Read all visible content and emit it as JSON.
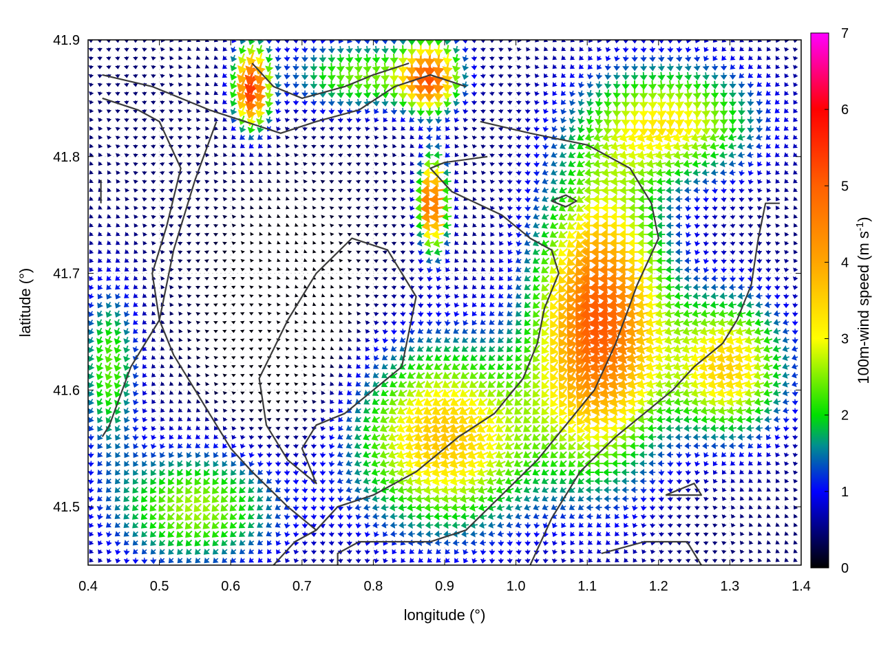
{
  "chart_data": {
    "type": "vector-field",
    "xlabel": "longitude (°)",
    "ylabel": "latitude (°)",
    "xlim": [
      0.4,
      1.4
    ],
    "ylim": [
      41.45,
      41.9
    ],
    "xticks": [
      {
        "value": 0.4,
        "label": "0.4"
      },
      {
        "value": 0.5,
        "label": "0.5"
      },
      {
        "value": 0.6,
        "label": "0.6"
      },
      {
        "value": 0.7,
        "label": "0.7"
      },
      {
        "value": 0.8,
        "label": "0.8"
      },
      {
        "value": 0.9,
        "label": "0.9"
      },
      {
        "value": 1.0,
        "label": "1.0"
      },
      {
        "value": 1.1,
        "label": "1.1"
      },
      {
        "value": 1.2,
        "label": "1.2"
      },
      {
        "value": 1.3,
        "label": "1.3"
      },
      {
        "value": 1.4,
        "label": "1.4"
      }
    ],
    "yticks": [
      {
        "value": 41.5,
        "label": "41.5"
      },
      {
        "value": 41.6,
        "label": "41.6"
      },
      {
        "value": 41.7,
        "label": "41.7"
      },
      {
        "value": 41.8,
        "label": "41.8"
      },
      {
        "value": 41.9,
        "label": "41.9"
      }
    ],
    "colorbar": {
      "label": "100m-wind speed (m s",
      "label_sup": "-1",
      "label_end": ")",
      "range": [
        0,
        7
      ],
      "ticks": [
        {
          "value": 0,
          "label": "0"
        },
        {
          "value": 1,
          "label": "1"
        },
        {
          "value": 2,
          "label": "2"
        },
        {
          "value": 3,
          "label": "3"
        },
        {
          "value": 4,
          "label": "4"
        },
        {
          "value": 5,
          "label": "5"
        },
        {
          "value": 6,
          "label": "6"
        },
        {
          "value": 7,
          "label": "7"
        }
      ],
      "stops": [
        {
          "value": 0,
          "color": "#000000"
        },
        {
          "value": 1,
          "color": "#0000ff"
        },
        {
          "value": 1.6,
          "color": "#008f8f"
        },
        {
          "value": 2,
          "color": "#00e000"
        },
        {
          "value": 3,
          "color": "#ffff00"
        },
        {
          "value": 4,
          "color": "#ffa500"
        },
        {
          "value": 5,
          "color": "#ff6000"
        },
        {
          "value": 6,
          "color": "#ff0000"
        },
        {
          "value": 7,
          "color": "#ff00ff"
        }
      ]
    },
    "grid": true,
    "contours": [
      {
        "name": "ridge-main",
        "points": [
          [
            0.96,
            41.8
          ],
          [
            0.9,
            41.795
          ],
          [
            0.88,
            41.79
          ],
          [
            0.91,
            41.77
          ],
          [
            0.98,
            41.75
          ],
          [
            1.02,
            41.73
          ],
          [
            1.05,
            41.72
          ],
          [
            1.06,
            41.7
          ],
          [
            1.04,
            41.67
          ],
          [
            1.03,
            41.64
          ],
          [
            1.01,
            41.61
          ],
          [
            0.97,
            41.58
          ],
          [
            0.92,
            41.56
          ],
          [
            0.86,
            41.53
          ],
          [
            0.8,
            41.51
          ],
          [
            0.75,
            41.5
          ],
          [
            0.72,
            41.48
          ],
          [
            0.69,
            41.47
          ],
          [
            0.66,
            41.45
          ]
        ]
      },
      {
        "name": "ridge-east",
        "points": [
          [
            0.95,
            41.83
          ],
          [
            1.02,
            41.82
          ],
          [
            1.1,
            41.81
          ],
          [
            1.16,
            41.79
          ],
          [
            1.19,
            41.76
          ],
          [
            1.2,
            41.73
          ],
          [
            1.17,
            41.69
          ],
          [
            1.14,
            41.64
          ],
          [
            1.11,
            41.6
          ],
          [
            1.07,
            41.57
          ],
          [
            1.03,
            41.54
          ],
          [
            0.98,
            41.51
          ],
          [
            0.93,
            41.48
          ],
          [
            0.88,
            41.47
          ],
          [
            0.82,
            41.47
          ],
          [
            0.78,
            41.47
          ],
          [
            0.75,
            41.46
          ],
          [
            0.75,
            41.45
          ]
        ]
      },
      {
        "name": "ridge-east-2",
        "points": [
          [
            1.02,
            41.45
          ],
          [
            1.05,
            41.49
          ],
          [
            1.09,
            41.53
          ],
          [
            1.14,
            41.56
          ],
          [
            1.18,
            41.58
          ],
          [
            1.22,
            41.6
          ],
          [
            1.25,
            41.62
          ],
          [
            1.29,
            41.64
          ],
          [
            1.31,
            41.66
          ],
          [
            1.33,
            41.69
          ],
          [
            1.34,
            41.73
          ],
          [
            1.35,
            41.76
          ],
          [
            1.37,
            41.76
          ]
        ]
      },
      {
        "name": "ridge-north",
        "points": [
          [
            0.42,
            41.87
          ],
          [
            0.49,
            41.86
          ],
          [
            0.53,
            41.85
          ],
          [
            0.57,
            41.84
          ],
          [
            0.62,
            41.83
          ],
          [
            0.67,
            41.82
          ],
          [
            0.72,
            41.83
          ],
          [
            0.78,
            41.84
          ],
          [
            0.83,
            41.86
          ],
          [
            0.88,
            41.87
          ],
          [
            0.93,
            41.86
          ]
        ]
      },
      {
        "name": "valley-west",
        "points": [
          [
            0.42,
            41.85
          ],
          [
            0.47,
            41.84
          ],
          [
            0.5,
            41.83
          ],
          [
            0.53,
            41.79
          ],
          [
            0.51,
            41.74
          ],
          [
            0.49,
            41.7
          ],
          [
            0.5,
            41.66
          ],
          [
            0.52,
            41.63
          ],
          [
            0.55,
            41.6
          ],
          [
            0.58,
            41.57
          ],
          [
            0.6,
            41.55
          ],
          [
            0.63,
            41.53
          ],
          [
            0.68,
            41.5
          ],
          [
            0.72,
            41.48
          ]
        ]
      },
      {
        "name": "basin",
        "points": [
          [
            0.58,
            41.83
          ],
          [
            0.55,
            41.78
          ],
          [
            0.52,
            41.72
          ],
          [
            0.5,
            41.66
          ],
          [
            0.46,
            41.62
          ],
          [
            0.43,
            41.57
          ],
          [
            0.42,
            41.56
          ]
        ]
      },
      {
        "name": "inner-loop",
        "points": [
          [
            0.68,
            41.66
          ],
          [
            0.72,
            41.7
          ],
          [
            0.77,
            41.73
          ],
          [
            0.82,
            41.72
          ],
          [
            0.86,
            41.68
          ],
          [
            0.84,
            41.62
          ],
          [
            0.8,
            41.6
          ],
          [
            0.76,
            41.58
          ],
          [
            0.72,
            41.57
          ],
          [
            0.7,
            41.55
          ],
          [
            0.72,
            41.52
          ],
          [
            0.68,
            41.54
          ],
          [
            0.65,
            41.57
          ],
          [
            0.64,
            41.61
          ],
          [
            0.68,
            41.66
          ]
        ]
      },
      {
        "name": "hill-se",
        "points": [
          [
            1.21,
            41.51
          ],
          [
            1.25,
            41.52
          ],
          [
            1.26,
            41.51
          ],
          [
            1.21,
            41.51
          ]
        ]
      },
      {
        "name": "hill-knob",
        "points": [
          [
            1.05,
            41.762
          ],
          [
            1.07,
            41.767
          ],
          [
            1.085,
            41.762
          ],
          [
            1.07,
            41.757
          ],
          [
            1.05,
            41.762
          ]
        ]
      },
      {
        "name": "north-edge",
        "points": [
          [
            0.63,
            41.88
          ],
          [
            0.66,
            41.86
          ],
          [
            0.7,
            41.85
          ],
          [
            0.76,
            41.86
          ],
          [
            0.8,
            41.87
          ],
          [
            0.85,
            41.88
          ]
        ]
      },
      {
        "name": "south-edge",
        "points": [
          [
            1.12,
            41.46
          ],
          [
            1.18,
            41.47
          ],
          [
            1.24,
            41.47
          ],
          [
            1.26,
            41.45
          ]
        ]
      },
      {
        "name": "west-stub",
        "points": [
          [
            0.418,
            41.76
          ],
          [
            0.418,
            41.78
          ]
        ]
      }
    ]
  }
}
